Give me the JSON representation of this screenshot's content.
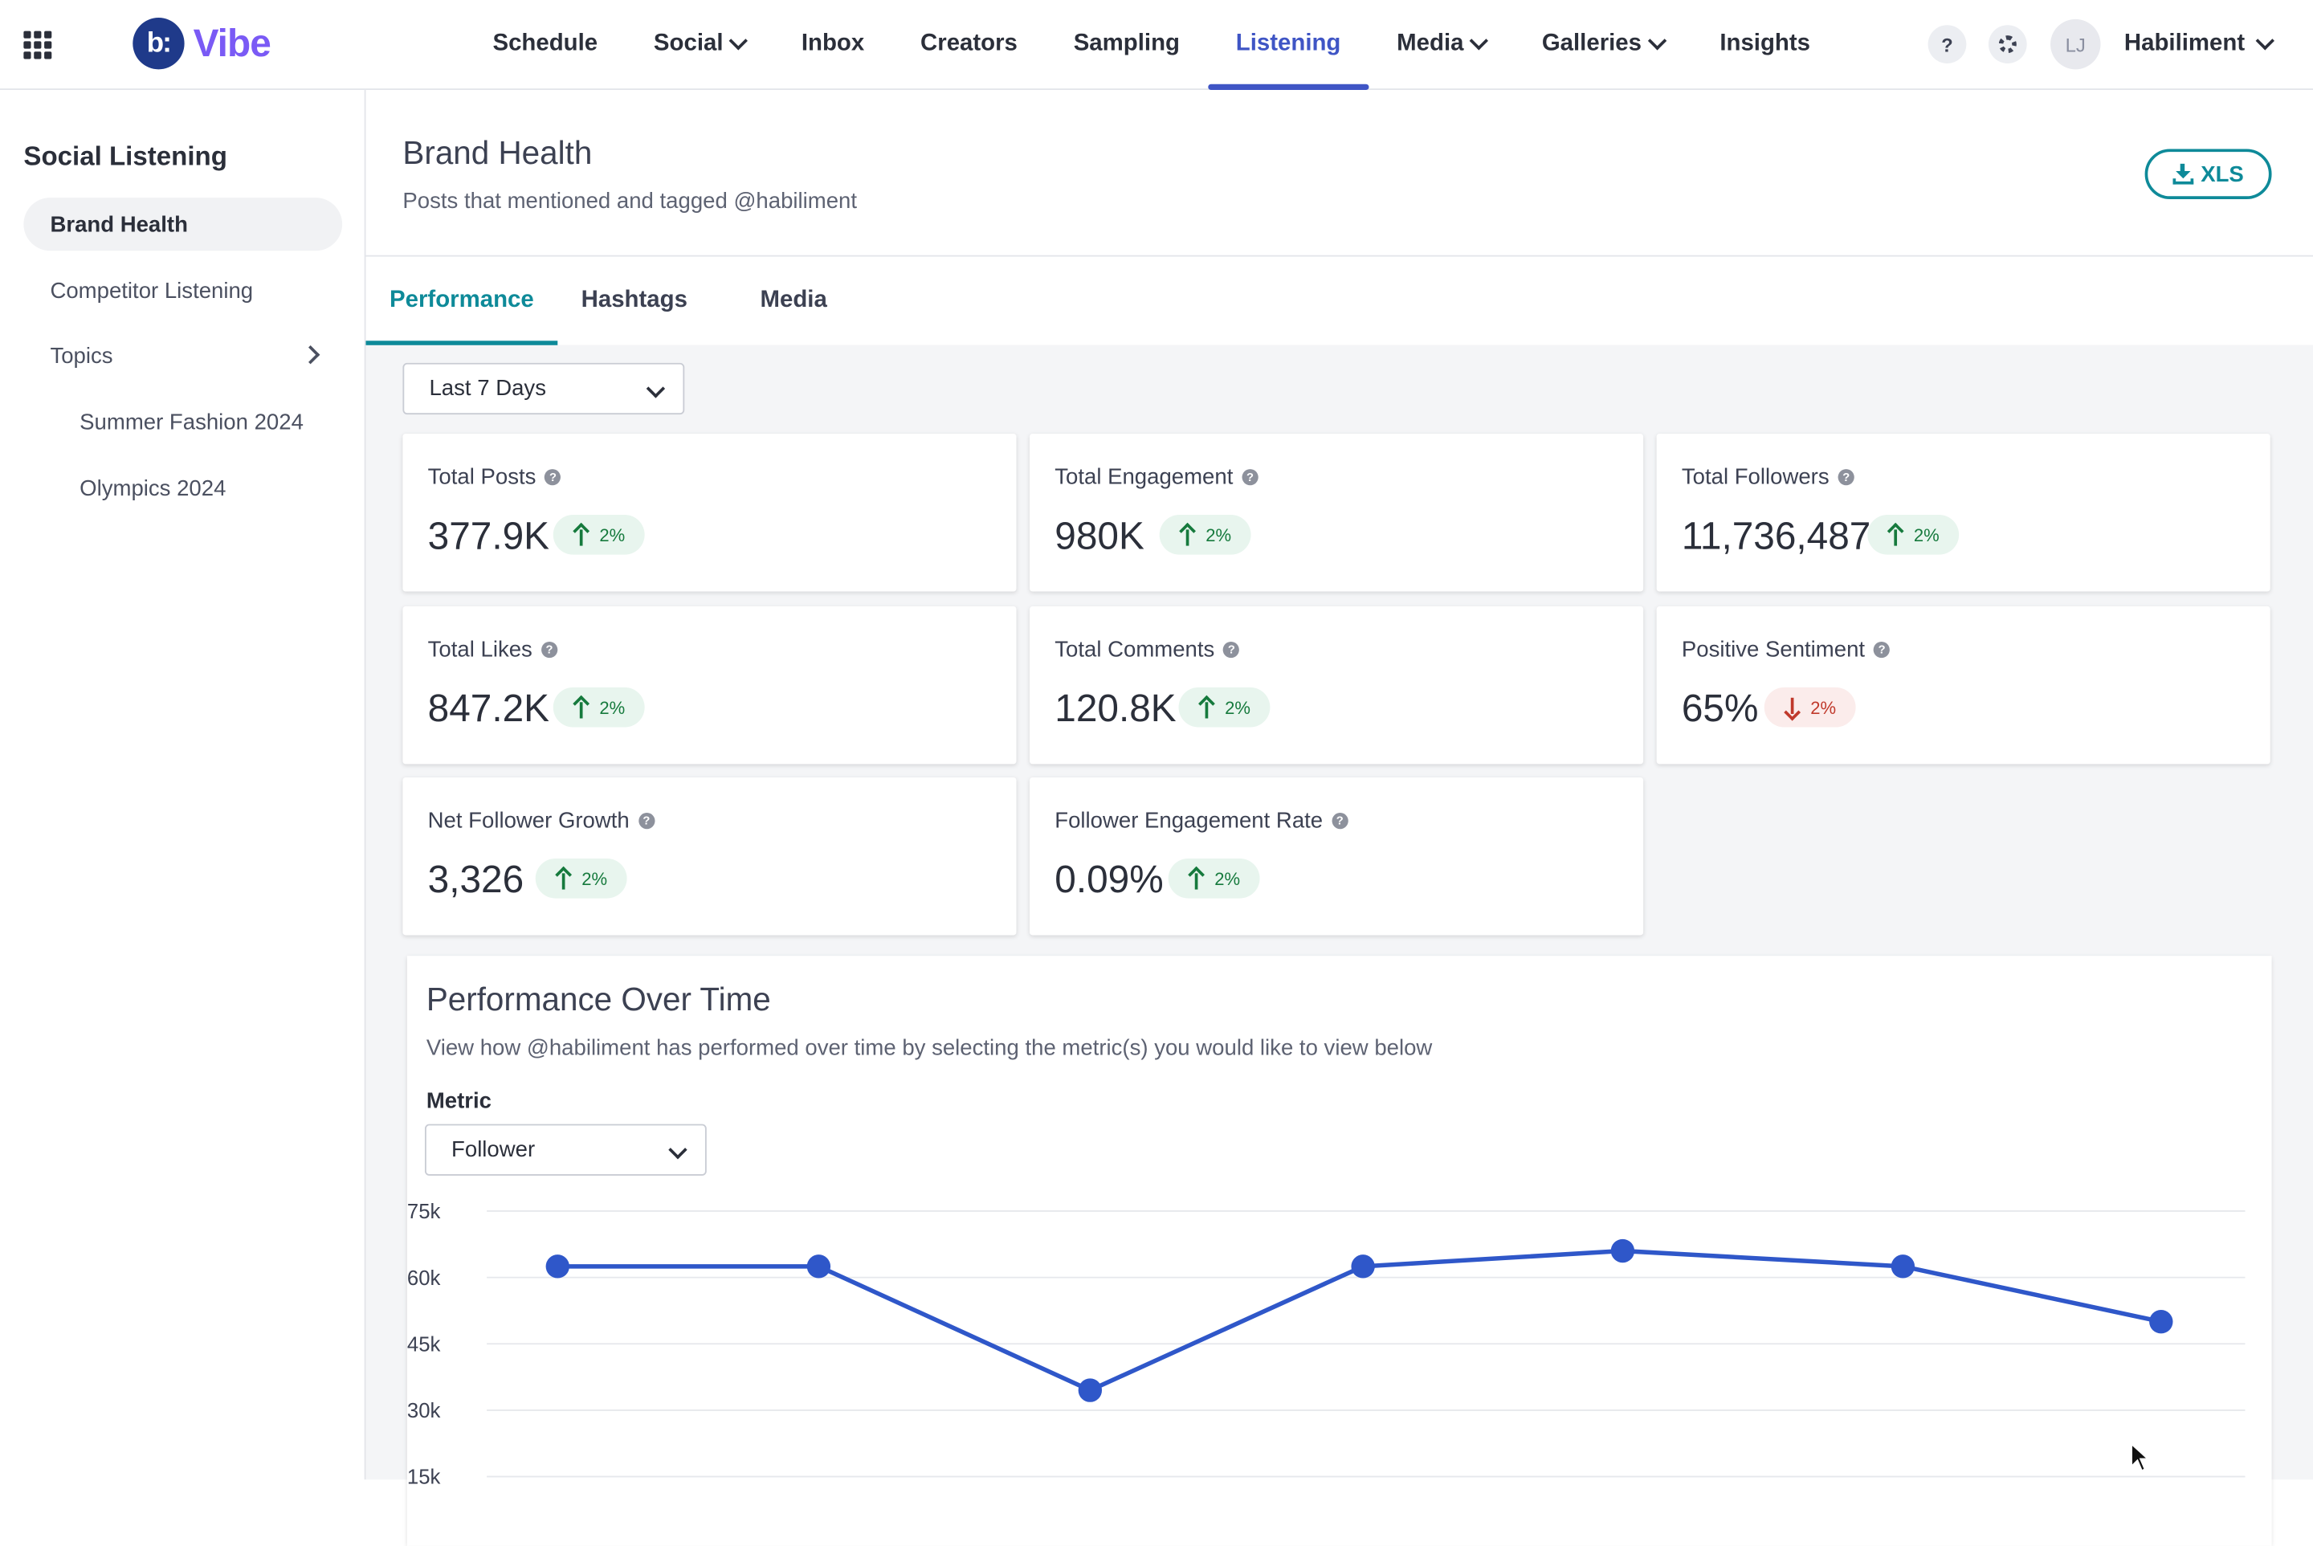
{
  "app": {
    "logo_mark": "b:",
    "logo_text": "Vibe",
    "nav": [
      "Schedule",
      "Social",
      "Inbox",
      "Creators",
      "Sampling",
      "Listening",
      "Media",
      "Galleries",
      "Insights"
    ],
    "help": "?",
    "avatar_initials": "LJ",
    "account": "Habiliment"
  },
  "sidebar": {
    "title": "Social Listening",
    "items": [
      "Brand Health",
      "Competitor Listening",
      "Topics",
      "Summer Fashion 2024",
      "Olympics 2024"
    ]
  },
  "header": {
    "title": "Brand Health",
    "subtitle": "Posts that mentioned and tagged @habiliment",
    "export": "XLS"
  },
  "tabs": [
    "Performance",
    "Hashtags",
    "Media"
  ],
  "date_range": "Last 7 Days",
  "metrics": [
    {
      "label": "Total Posts",
      "value": "377.9K",
      "delta": "2%",
      "direction": "up"
    },
    {
      "label": "Total Engagement",
      "value": "980K",
      "delta": "2%",
      "direction": "up"
    },
    {
      "label": "Total Followers",
      "value": "11,736,487",
      "delta": "2%",
      "direction": "up"
    },
    {
      "label": "Total Likes",
      "value": "847.2K",
      "delta": "2%",
      "direction": "up"
    },
    {
      "label": "Total Comments",
      "value": "120.8K",
      "delta": "2%",
      "direction": "up"
    },
    {
      "label": "Positive Sentiment",
      "value": "65%",
      "delta": "2%",
      "direction": "down"
    },
    {
      "label": "Net Follower Growth",
      "value": "3,326",
      "delta": "2%",
      "direction": "up"
    },
    {
      "label": "Follower Engagement Rate",
      "value": "0.09%",
      "delta": "2%",
      "direction": "up"
    }
  ],
  "performance": {
    "title": "Performance Over Time",
    "description": "View how @habiliment has performed over time by selecting the metric(s) you would like to view below",
    "metric_label": "Metric",
    "metric_value": "Follower"
  },
  "colors": {
    "accent": "#0e8a99",
    "nav_active": "#3f55c5",
    "line": "#2f57c9",
    "up": "#167a3d",
    "down": "#c0392b"
  },
  "chart_data": {
    "type": "line",
    "yticks": [
      "75k",
      "60k",
      "45k",
      "30k",
      "15k"
    ],
    "ylim": [
      15000,
      75000
    ],
    "values": [
      62500,
      62500,
      34500,
      62500,
      66000,
      62500,
      50000
    ],
    "grid": true
  }
}
